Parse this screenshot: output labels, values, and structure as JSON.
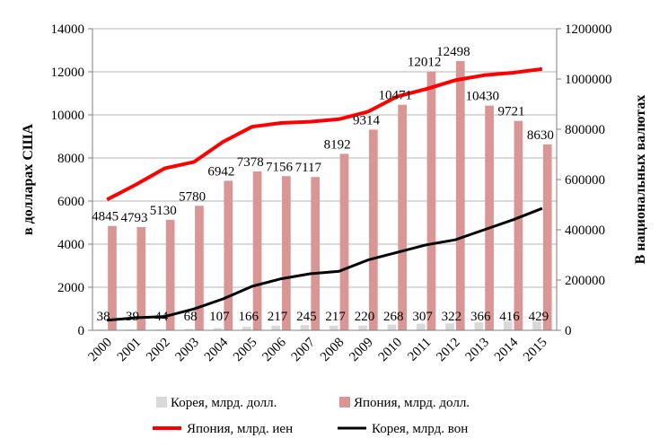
{
  "chart_data": {
    "type": "bar",
    "categories": [
      "2000",
      "2001",
      "2002",
      "2003",
      "2004",
      "2005",
      "2006",
      "2007",
      "2008",
      "2009",
      "2010",
      "2011",
      "2012",
      "2013",
      "2014",
      "2015"
    ],
    "ylabel_left": "в долларах США",
    "ylabel_right": "В национальных валютах",
    "ylim_left": [
      0,
      14000
    ],
    "yticks_left": [
      "0",
      "2000",
      "4000",
      "6000",
      "8000",
      "10000",
      "12000",
      "14000"
    ],
    "ylim_right": [
      0,
      1200000
    ],
    "yticks_right": [
      "0",
      "200000",
      "400000",
      "600000",
      "800000",
      "1000000",
      "1200000"
    ],
    "grid": "horizontal",
    "legend_position": "bottom",
    "bar_series": [
      {
        "name": "Корея, млрд. долл.",
        "color": "#d9d9d9",
        "axis": "left",
        "values": [
          38,
          39,
          44,
          68,
          107,
          166,
          217,
          245,
          217,
          220,
          268,
          307,
          322,
          366,
          416,
          429
        ],
        "labels": [
          "38",
          "39",
          "44",
          "68",
          "107",
          "166",
          "217",
          "245",
          "217",
          "220",
          "268",
          "307",
          "322",
          "366",
          "416",
          "429"
        ]
      },
      {
        "name": "Япония, млрд. долл.",
        "color": "#d99694",
        "axis": "left",
        "values": [
          4845,
          4793,
          5130,
          5780,
          6942,
          7378,
          7156,
          7117,
          8192,
          9314,
          10471,
          12012,
          12498,
          10430,
          9721,
          8630
        ],
        "labels": [
          "4845",
          "4793",
          "5130",
          "5780",
          "6942",
          "7378",
          "7156",
          "7117",
          "8192",
          "9314",
          "10471",
          "12012",
          "12498",
          "10430",
          "9721",
          "8630"
        ]
      }
    ],
    "line_series": [
      {
        "name": "Япония, млрд. иен",
        "color": "#ff0000",
        "axis": "right",
        "values": [
          520000,
          580000,
          645000,
          670000,
          750000,
          810000,
          825000,
          830000,
          840000,
          870000,
          930000,
          960000,
          995000,
          1015000,
          1025000,
          1040000
        ]
      },
      {
        "name": "Корея, млрд. вон",
        "color": "#000000",
        "axis": "right",
        "values": [
          40000,
          50000,
          55000,
          85000,
          125000,
          175000,
          205000,
          225000,
          235000,
          280000,
          310000,
          340000,
          360000,
          400000,
          440000,
          485000
        ]
      }
    ]
  }
}
